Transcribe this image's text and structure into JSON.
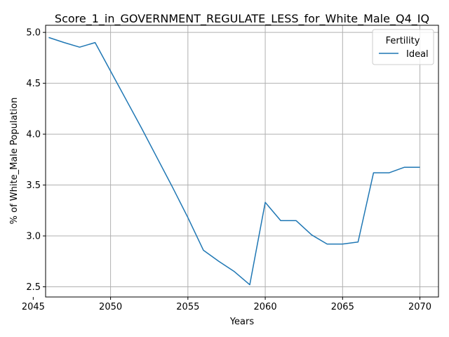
{
  "chart_data": {
    "type": "line",
    "title": "Score_1_in_GOVERNMENT_REGULATE_LESS_for_White_Male_Q4_IQ",
    "xlabel": "Years",
    "ylabel": "% of White_Male Population",
    "xlim": [
      2045.8,
      2071.2
    ],
    "ylim": [
      2.4,
      5.07
    ],
    "xticks": [
      2045,
      2050,
      2055,
      2060,
      2065,
      2070
    ],
    "yticks": [
      2.5,
      3.0,
      3.5,
      4.0,
      4.5,
      5.0
    ],
    "xtick_labels": [
      "2045",
      "2050",
      "2055",
      "2060",
      "2065",
      "2070"
    ],
    "ytick_labels": [
      "2.5",
      "3.0",
      "3.5",
      "4.0",
      "4.5",
      "5.0"
    ],
    "grid": true,
    "legend": {
      "title": "Fertility",
      "placement": "top-right"
    },
    "series": [
      {
        "name": "Ideal",
        "color": "#1f77b4",
        "x": [
          2046,
          2047,
          2048,
          2049,
          2050,
          2051,
          2052,
          2053,
          2054,
          2055,
          2056,
          2057,
          2058,
          2059,
          2060,
          2061,
          2062,
          2063,
          2064,
          2065,
          2066,
          2067,
          2068,
          2069,
          2070
        ],
        "y": [
          4.95,
          4.9,
          4.855,
          4.9,
          4.62,
          4.34,
          4.06,
          3.77,
          3.48,
          3.18,
          2.86,
          2.75,
          2.65,
          2.52,
          3.33,
          3.15,
          3.15,
          3.01,
          2.92,
          2.92,
          2.94,
          3.62,
          3.62,
          3.675,
          3.675
        ]
      }
    ]
  }
}
